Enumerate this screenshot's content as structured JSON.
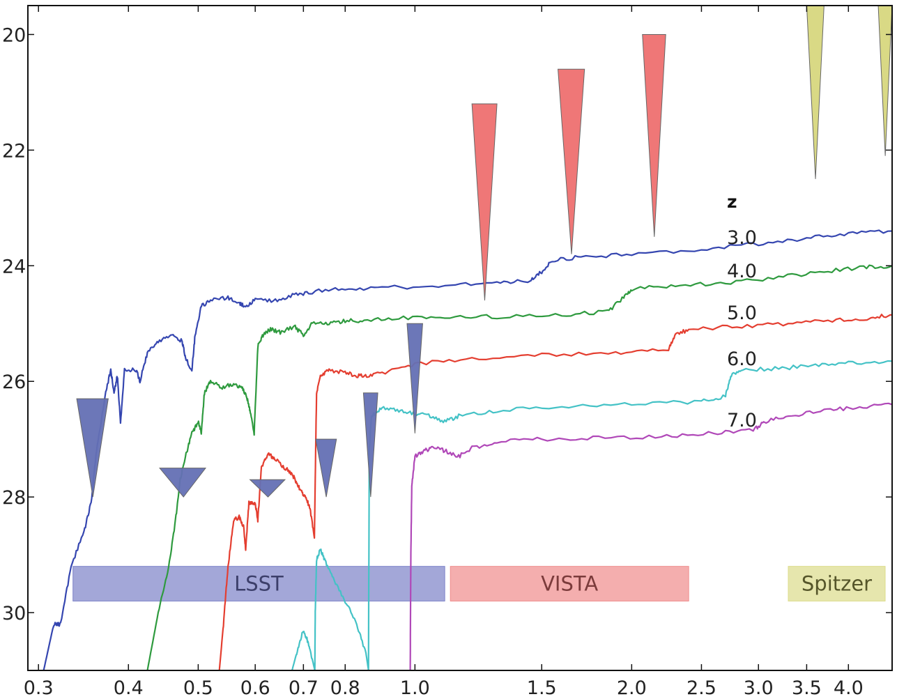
{
  "chart_data": {
    "type": "line",
    "title": "",
    "xlabel": "",
    "ylabel": "",
    "xscale": "log",
    "xlim": [
      0.29,
      4.6
    ],
    "ylim": [
      31.0,
      19.5
    ],
    "y_inverted": true,
    "grid": false,
    "xticks": [
      {
        "value": 0.3,
        "label": "0.3"
      },
      {
        "value": 0.4,
        "label": "0.4"
      },
      {
        "value": 0.5,
        "label": "0.5"
      },
      {
        "value": 0.6,
        "label": "0.6"
      },
      {
        "value": 0.7,
        "label": "0.7"
      },
      {
        "value": 0.8,
        "label": "0.8"
      },
      {
        "value": 1.0,
        "label": "1.0"
      },
      {
        "value": 1.5,
        "label": "1.5"
      },
      {
        "value": 2.0,
        "label": "2.0"
      },
      {
        "value": 2.5,
        "label": "2.5"
      },
      {
        "value": 3.0,
        "label": "3.0"
      },
      {
        "value": 3.5,
        "label": "3.5"
      },
      {
        "value": 4.0,
        "label": "4.0"
      }
    ],
    "yticks": [
      {
        "value": 20,
        "label": "20"
      },
      {
        "value": 22,
        "label": "22"
      },
      {
        "value": 24,
        "label": "24"
      },
      {
        "value": 26,
        "label": "26"
      },
      {
        "value": 28,
        "label": "28"
      },
      {
        "value": 30,
        "label": "30"
      }
    ],
    "legend": {
      "title": "z",
      "placement": "right"
    },
    "series": [
      {
        "name": "3.0",
        "color": "#3546b0",
        "points": [
          [
            0.305,
            31.0
          ],
          [
            0.315,
            30.2
          ],
          [
            0.322,
            30.2
          ],
          [
            0.333,
            29.2
          ],
          [
            0.347,
            28.6
          ],
          [
            0.355,
            28.1
          ],
          [
            0.362,
            27.1
          ],
          [
            0.372,
            26.2
          ],
          [
            0.378,
            25.8
          ],
          [
            0.382,
            26.2
          ],
          [
            0.386,
            25.9
          ],
          [
            0.39,
            26.7
          ],
          [
            0.395,
            25.8
          ],
          [
            0.41,
            25.8
          ],
          [
            0.415,
            26.0
          ],
          [
            0.425,
            25.5
          ],
          [
            0.44,
            25.3
          ],
          [
            0.46,
            25.2
          ],
          [
            0.475,
            25.3
          ],
          [
            0.48,
            25.6
          ],
          [
            0.49,
            25.8
          ],
          [
            0.495,
            25.2
          ],
          [
            0.505,
            24.7
          ],
          [
            0.52,
            24.6
          ],
          [
            0.55,
            24.55
          ],
          [
            0.57,
            24.65
          ],
          [
            0.58,
            24.7
          ],
          [
            0.6,
            24.6
          ],
          [
            0.64,
            24.6
          ],
          [
            0.68,
            24.5
          ],
          [
            0.72,
            24.45
          ],
          [
            0.8,
            24.4
          ],
          [
            0.9,
            24.38
          ],
          [
            1.1,
            24.35
          ],
          [
            1.3,
            24.3
          ],
          [
            1.45,
            24.25
          ],
          [
            1.5,
            24.1
          ],
          [
            1.55,
            23.9
          ],
          [
            1.7,
            23.85
          ],
          [
            2.0,
            23.8
          ],
          [
            2.5,
            23.72
          ],
          [
            3.0,
            23.62
          ],
          [
            3.5,
            23.52
          ],
          [
            4.0,
            23.45
          ],
          [
            4.6,
            23.4
          ]
        ]
      },
      {
        "name": "4.0",
        "color": "#2e9a3e",
        "points": [
          [
            0.425,
            31.0
          ],
          [
            0.44,
            30.0
          ],
          [
            0.455,
            29.2
          ],
          [
            0.465,
            28.4
          ],
          [
            0.472,
            27.7
          ],
          [
            0.48,
            27.3
          ],
          [
            0.49,
            26.9
          ],
          [
            0.5,
            26.7
          ],
          [
            0.505,
            26.9
          ],
          [
            0.51,
            26.2
          ],
          [
            0.52,
            26.0
          ],
          [
            0.54,
            26.1
          ],
          [
            0.56,
            26.05
          ],
          [
            0.575,
            26.1
          ],
          [
            0.585,
            26.3
          ],
          [
            0.59,
            26.5
          ],
          [
            0.598,
            26.9
          ],
          [
            0.605,
            25.4
          ],
          [
            0.615,
            25.2
          ],
          [
            0.63,
            25.1
          ],
          [
            0.65,
            25.15
          ],
          [
            0.68,
            25.05
          ],
          [
            0.7,
            25.2
          ],
          [
            0.72,
            25.0
          ],
          [
            0.76,
            25.0
          ],
          [
            0.8,
            24.95
          ],
          [
            0.85,
            24.95
          ],
          [
            0.95,
            24.9
          ],
          [
            1.1,
            24.9
          ],
          [
            1.3,
            24.88
          ],
          [
            1.6,
            24.85
          ],
          [
            1.85,
            24.8
          ],
          [
            1.95,
            24.55
          ],
          [
            2.0,
            24.4
          ],
          [
            2.3,
            24.35
          ],
          [
            2.7,
            24.3
          ],
          [
            3.2,
            24.2
          ],
          [
            3.7,
            24.1
          ],
          [
            4.2,
            24.02
          ],
          [
            4.6,
            24.0
          ]
        ]
      },
      {
        "name": "5.0",
        "color": "#e43e30",
        "points": [
          [
            0.535,
            31.0
          ],
          [
            0.542,
            30.2
          ],
          [
            0.55,
            29.2
          ],
          [
            0.56,
            28.4
          ],
          [
            0.57,
            28.35
          ],
          [
            0.578,
            28.5
          ],
          [
            0.582,
            28.9
          ],
          [
            0.588,
            28.1
          ],
          [
            0.6,
            28.1
          ],
          [
            0.605,
            28.4
          ],
          [
            0.612,
            27.5
          ],
          [
            0.625,
            27.25
          ],
          [
            0.64,
            27.35
          ],
          [
            0.66,
            27.5
          ],
          [
            0.675,
            27.6
          ],
          [
            0.685,
            27.75
          ],
          [
            0.695,
            27.9
          ],
          [
            0.705,
            28.0
          ],
          [
            0.715,
            28.2
          ],
          [
            0.725,
            28.7
          ],
          [
            0.73,
            26.2
          ],
          [
            0.74,
            25.9
          ],
          [
            0.76,
            25.8
          ],
          [
            0.8,
            25.85
          ],
          [
            0.83,
            25.9
          ],
          [
            0.86,
            25.9
          ],
          [
            0.9,
            25.85
          ],
          [
            1.0,
            25.7
          ],
          [
            1.2,
            25.6
          ],
          [
            1.5,
            25.55
          ],
          [
            1.9,
            25.5
          ],
          [
            2.25,
            25.45
          ],
          [
            2.3,
            25.2
          ],
          [
            2.4,
            25.1
          ],
          [
            2.8,
            25.05
          ],
          [
            3.3,
            25.0
          ],
          [
            3.8,
            24.95
          ],
          [
            4.3,
            24.9
          ],
          [
            4.6,
            24.85
          ]
        ]
      },
      {
        "name": "6.0",
        "color": "#44c2c6",
        "points": [
          [
            0.675,
            31.0
          ],
          [
            0.685,
            30.7
          ],
          [
            0.7,
            30.3
          ],
          [
            0.71,
            30.5
          ],
          [
            0.72,
            30.8
          ],
          [
            0.726,
            31.0
          ],
          [
            0.727,
            30.0
          ],
          [
            0.73,
            29.1
          ],
          [
            0.738,
            28.9
          ],
          [
            0.75,
            29.1
          ],
          [
            0.77,
            29.4
          ],
          [
            0.8,
            29.8
          ],
          [
            0.83,
            30.2
          ],
          [
            0.855,
            30.7
          ],
          [
            0.862,
            31.0
          ],
          [
            0.864,
            27.2
          ],
          [
            0.87,
            26.6
          ],
          [
            0.9,
            26.45
          ],
          [
            0.95,
            26.5
          ],
          [
            1.0,
            26.55
          ],
          [
            1.05,
            26.6
          ],
          [
            1.1,
            26.7
          ],
          [
            1.15,
            26.6
          ],
          [
            1.3,
            26.5
          ],
          [
            1.6,
            26.45
          ],
          [
            2.0,
            26.4
          ],
          [
            2.5,
            26.35
          ],
          [
            2.7,
            26.25
          ],
          [
            2.75,
            25.9
          ],
          [
            2.85,
            25.8
          ],
          [
            3.2,
            25.78
          ],
          [
            3.6,
            25.72
          ],
          [
            4.0,
            25.68
          ],
          [
            4.6,
            25.65
          ]
        ]
      },
      {
        "name": "7.0",
        "color": "#b048b8",
        "points": [
          [
            0.985,
            31.0
          ],
          [
            0.987,
            29.0
          ],
          [
            0.99,
            27.8
          ],
          [
            1.0,
            27.3
          ],
          [
            1.03,
            27.2
          ],
          [
            1.06,
            27.15
          ],
          [
            1.1,
            27.2
          ],
          [
            1.15,
            27.3
          ],
          [
            1.2,
            27.15
          ],
          [
            1.3,
            27.05
          ],
          [
            1.5,
            27.0
          ],
          [
            1.8,
            26.98
          ],
          [
            2.2,
            26.95
          ],
          [
            2.6,
            26.9
          ],
          [
            2.95,
            26.85
          ],
          [
            3.05,
            26.7
          ],
          [
            3.3,
            26.6
          ],
          [
            3.7,
            26.5
          ],
          [
            4.1,
            26.45
          ],
          [
            4.6,
            26.4
          ]
        ]
      }
    ],
    "limit_markers": [
      {
        "survey": "LSST",
        "color": "#6470b4",
        "lambda_center": 0.357,
        "lambda_half_width": 0.018,
        "depth": 28.0,
        "top": 26.3
      },
      {
        "survey": "LSST",
        "color": "#6470b4",
        "lambda_center": 0.477,
        "lambda_half_width": 0.035,
        "depth": 28.0,
        "top": 27.5
      },
      {
        "survey": "LSST",
        "color": "#6470b4",
        "lambda_center": 0.625,
        "lambda_half_width": 0.035,
        "depth": 28.0,
        "top": 27.7
      },
      {
        "survey": "LSST",
        "color": "#6470b4",
        "lambda_center": 0.753,
        "lambda_half_width": 0.025,
        "depth": 28.0,
        "top": 27.0
      },
      {
        "survey": "LSST",
        "color": "#6470b4",
        "lambda_center": 0.868,
        "lambda_half_width": 0.02,
        "depth": 28.0,
        "top": 26.2
      },
      {
        "survey": "LSST",
        "color": "#6470b4",
        "lambda_center": 1.0,
        "lambda_half_width": 0.025,
        "depth": 26.9,
        "top": 25.0
      },
      {
        "survey": "VISTA",
        "color": "#ee7070",
        "lambda_center": 1.25,
        "lambda_half_width": 0.05,
        "depth": 24.6,
        "top": 21.2
      },
      {
        "survey": "VISTA",
        "color": "#ee7070",
        "lambda_center": 1.65,
        "lambda_half_width": 0.07,
        "depth": 23.8,
        "top": 20.6
      },
      {
        "survey": "VISTA",
        "color": "#ee7070",
        "lambda_center": 2.15,
        "lambda_half_width": 0.08,
        "depth": 23.5,
        "top": 20.0
      },
      {
        "survey": "Spitzer",
        "color": "#d7d77e",
        "lambda_center": 3.6,
        "lambda_half_width": 0.1,
        "depth": 22.5,
        "top": 19.5
      },
      {
        "survey": "Spitzer",
        "color": "#d7d77e",
        "lambda_center": 4.5,
        "lambda_half_width": 0.1,
        "depth": 22.1,
        "top": 19.5
      }
    ],
    "bands": [
      {
        "label": "LSST",
        "color": "#7c82c8",
        "text_color": "#3c3f6a",
        "x_start": 0.335,
        "x_end": 1.1,
        "y_top": 29.2,
        "y_bottom": 29.8
      },
      {
        "label": "VISTA",
        "color": "#ef8c8c",
        "text_color": "#7b3b3b",
        "x_start": 1.12,
        "x_end": 2.4,
        "y_top": 29.2,
        "y_bottom": 29.8
      },
      {
        "label": "Spitzer",
        "color": "#dcdc8a",
        "text_color": "#55552a",
        "x_start": 3.3,
        "x_end": 4.6,
        "y_top": 29.2,
        "y_bottom": 29.8
      }
    ]
  }
}
